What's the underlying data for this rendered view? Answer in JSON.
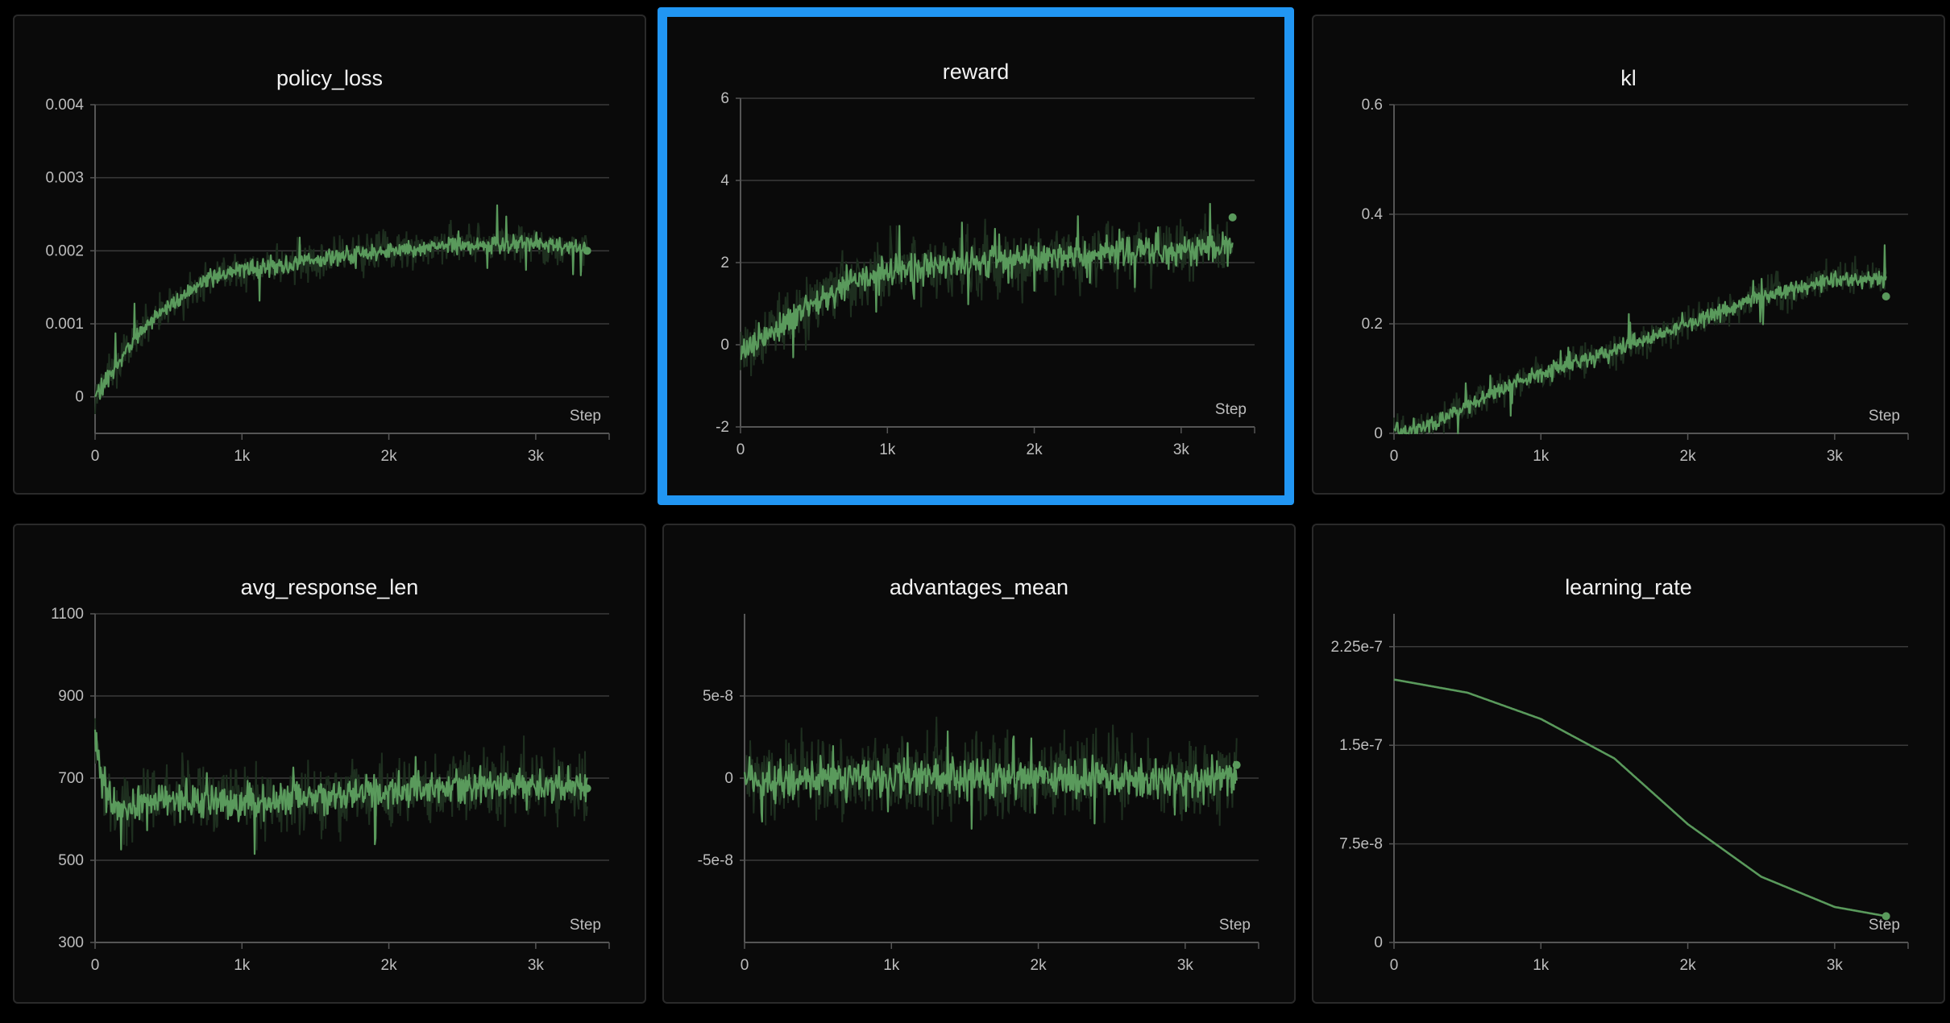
{
  "colors": {
    "background": "#000000",
    "panel": "#0a0a0a",
    "panel_border": "#2a2a2a",
    "selection": "#2196f3",
    "series": "#5a9a5c",
    "series_shadow": "#1e2f1f",
    "grid": "#3a3a3a",
    "axis": "#555555",
    "text": "#f2f2f2",
    "tick_text": "#bdbdbd"
  },
  "selected_panel": "reward",
  "chart_data": [
    {
      "id": "policy_loss",
      "type": "line",
      "title": "policy_loss",
      "xlabel": "Step",
      "xlim": [
        0,
        3500
      ],
      "ylim": [
        -0.0005,
        0.004
      ],
      "xticks": [
        0,
        1000,
        2000,
        3000
      ],
      "xtick_labels": [
        "0",
        "1k",
        "2k",
        "3k"
      ],
      "yticks": [
        0,
        0.001,
        0.002,
        0.003,
        0.004
      ],
      "ytick_labels": [
        "0",
        "0.001",
        "0.002",
        "0.003",
        "0.004"
      ],
      "grid": true,
      "x_end": 3350,
      "noise": 0.00012,
      "spike_prob": 0.02,
      "spike_amp": 0.0004,
      "end_value": 0.002,
      "series": [
        {
          "curve": [
            [
              0,
              0
            ],
            [
              200,
              0.0006
            ],
            [
              400,
              0.0011
            ],
            [
              600,
              0.0014
            ],
            [
              800,
              0.00165
            ],
            [
              1000,
              0.00175
            ],
            [
              1200,
              0.00178
            ],
            [
              1400,
              0.00185
            ],
            [
              1600,
              0.0019
            ],
            [
              2000,
              0.002
            ],
            [
              2500,
              0.0021
            ],
            [
              3000,
              0.0021
            ],
            [
              3350,
              0.00205
            ]
          ]
        }
      ]
    },
    {
      "id": "reward",
      "type": "line",
      "title": "reward",
      "xlabel": "Step",
      "xlim": [
        0,
        3500
      ],
      "ylim": [
        -2,
        6
      ],
      "xticks": [
        0,
        1000,
        2000,
        3000
      ],
      "xtick_labels": [
        "0",
        "1k",
        "2k",
        "3k"
      ],
      "yticks": [
        -2,
        0,
        2,
        4,
        6
      ],
      "ytick_labels": [
        "-2",
        "0",
        "2",
        "4",
        "6"
      ],
      "grid": true,
      "x_end": 3350,
      "noise": 0.35,
      "spike_prob": 0.03,
      "spike_amp": 0.6,
      "end_value": 3.1,
      "series": [
        {
          "curve": [
            [
              0,
              -0.3
            ],
            [
              200,
              0.3
            ],
            [
              400,
              0.8
            ],
            [
              600,
              1.2
            ],
            [
              800,
              1.6
            ],
            [
              1000,
              1.8
            ],
            [
              1500,
              2.0
            ],
            [
              2000,
              2.1
            ],
            [
              2500,
              2.2
            ],
            [
              3000,
              2.3
            ],
            [
              3350,
              2.4
            ]
          ]
        }
      ]
    },
    {
      "id": "kl",
      "type": "line",
      "title": "kl",
      "xlabel": "Step",
      "xlim": [
        0,
        3500
      ],
      "ylim": [
        0,
        0.6
      ],
      "xticks": [
        0,
        1000,
        2000,
        3000
      ],
      "xtick_labels": [
        "0",
        "1k",
        "2k",
        "3k"
      ],
      "yticks": [
        0,
        0.2,
        0.4,
        0.6
      ],
      "ytick_labels": [
        "0",
        "0.2",
        "0.4",
        "0.6"
      ],
      "grid": true,
      "x_end": 3350,
      "noise": 0.014,
      "spike_prob": 0.02,
      "spike_amp": 0.04,
      "end_value": 0.25,
      "series": [
        {
          "curve": [
            [
              0,
              0
            ],
            [
              200,
              0.01
            ],
            [
              500,
              0.05
            ],
            [
              800,
              0.09
            ],
            [
              1000,
              0.11
            ],
            [
              1500,
              0.15
            ],
            [
              2000,
              0.2
            ],
            [
              2500,
              0.25
            ],
            [
              3000,
              0.28
            ],
            [
              3350,
              0.28
            ]
          ]
        }
      ]
    },
    {
      "id": "avg_response_len",
      "type": "line",
      "title": "avg_response_len",
      "xlabel": "Step",
      "xlim": [
        0,
        3500
      ],
      "ylim": [
        300,
        1100
      ],
      "xticks": [
        0,
        1000,
        2000,
        3000
      ],
      "xtick_labels": [
        "0",
        "1k",
        "2k",
        "3k"
      ],
      "yticks": [
        300,
        500,
        700,
        900,
        1100
      ],
      "ytick_labels": [
        "300",
        "500",
        "700",
        "900",
        "1100"
      ],
      "grid": true,
      "x_end": 3350,
      "noise": 38,
      "spike_prob": 0.03,
      "spike_amp": 70,
      "end_value": 675,
      "series": [
        {
          "curve": [
            [
              0,
              800
            ],
            [
              50,
              680
            ],
            [
              150,
              620
            ],
            [
              300,
              640
            ],
            [
              600,
              650
            ],
            [
              1000,
              640
            ],
            [
              1500,
              650
            ],
            [
              2000,
              665
            ],
            [
              2500,
              680
            ],
            [
              3000,
              680
            ],
            [
              3350,
              680
            ]
          ]
        }
      ]
    },
    {
      "id": "advantages_mean",
      "type": "line",
      "title": "advantages_mean",
      "xlabel": "Step",
      "xlim": [
        0,
        3500
      ],
      "ylim": [
        -1e-07,
        1e-07
      ],
      "xticks": [
        0,
        1000,
        2000,
        3000
      ],
      "xtick_labels": [
        "0",
        "1k",
        "2k",
        "3k"
      ],
      "yticks": [
        -5e-08,
        0,
        5e-08
      ],
      "ytick_labels": [
        "-5e-8",
        "0",
        "5e-8"
      ],
      "grid": true,
      "x_end": 3350,
      "noise": 1.1e-08,
      "spike_prob": 0.04,
      "spike_amp": 1.8e-08,
      "end_value": 8e-09,
      "series": [
        {
          "curve": [
            [
              0,
              0
            ],
            [
              3350,
              0
            ]
          ]
        }
      ]
    },
    {
      "id": "learning_rate",
      "type": "line",
      "title": "learning_rate",
      "xlabel": "Step",
      "xlim": [
        0,
        3500
      ],
      "ylim": [
        0,
        2.5e-07
      ],
      "xticks": [
        0,
        1000,
        2000,
        3000
      ],
      "xtick_labels": [
        "0",
        "1k",
        "2k",
        "3k"
      ],
      "yticks": [
        0,
        7.5e-08,
        1.5e-07,
        2.25e-07
      ],
      "ytick_labels": [
        "0",
        "7.5e-8",
        "1.5e-7",
        "2.25e-7"
      ],
      "grid": true,
      "x_end": 3350,
      "noise": 0,
      "spike_prob": 0,
      "spike_amp": 0,
      "end_value": 2e-08,
      "series": [
        {
          "curve": [
            [
              0,
              2e-07
            ],
            [
              500,
              1.9e-07
            ],
            [
              1000,
              1.7e-07
            ],
            [
              1500,
              1.4e-07
            ],
            [
              2000,
              9e-08
            ],
            [
              2500,
              5e-08
            ],
            [
              3000,
              2.7e-08
            ],
            [
              3350,
              2e-08
            ]
          ]
        }
      ]
    }
  ]
}
